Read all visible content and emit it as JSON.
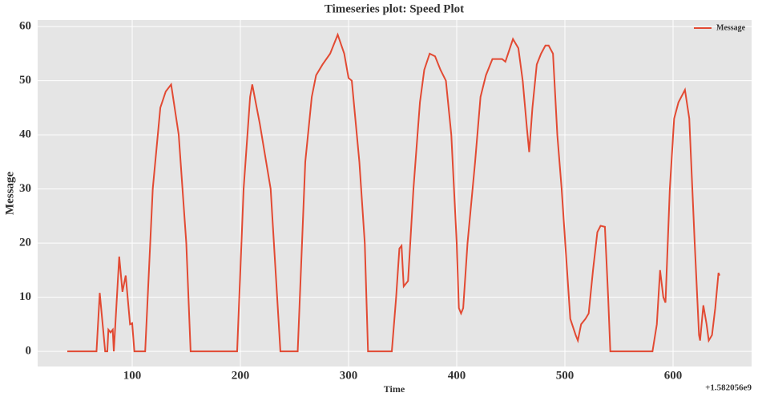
{
  "chart_data": {
    "type": "line",
    "title": "Timeseries plot: Speed Plot",
    "xlabel": "Time",
    "ylabel": "Message",
    "x_offset_label": "+1.582056e9",
    "x": [
      40,
      67,
      70,
      75,
      77,
      78,
      80,
      82,
      83,
      88,
      91,
      94,
      98,
      100,
      102,
      112,
      119,
      126,
      131,
      136,
      143,
      150,
      154,
      197,
      203,
      209,
      211,
      218,
      228,
      234,
      237,
      253,
      260,
      266,
      270,
      276,
      283,
      290,
      296,
      300,
      303,
      310,
      315,
      318,
      340,
      344,
      347,
      349,
      351,
      355,
      360,
      366,
      370,
      375,
      380,
      385,
      390,
      395,
      400,
      402,
      404,
      406,
      410,
      417,
      422,
      427,
      433,
      442,
      445,
      452,
      457,
      461,
      465,
      467,
      470,
      474,
      478,
      482,
      485,
      489,
      493,
      497,
      502,
      505,
      510,
      512,
      515,
      519,
      522,
      526,
      530,
      533,
      537,
      540,
      542,
      581,
      585,
      588,
      591,
      593,
      597,
      601,
      605,
      611,
      615,
      620,
      624,
      625,
      628,
      631,
      633,
      636,
      639,
      642,
      643
    ],
    "series": [
      {
        "name": "Message",
        "color": "#e24a33",
        "values": [
          0,
          0,
          10.8,
          0,
          0,
          4,
          3.5,
          4,
          0,
          17.5,
          11,
          14,
          5,
          5.2,
          0,
          0,
          30,
          45,
          48,
          49.3,
          40,
          20,
          0,
          0,
          30,
          47,
          49.3,
          42,
          30,
          10,
          0,
          0,
          35,
          47,
          51,
          53,
          55,
          58.5,
          55,
          50.5,
          50,
          35,
          20,
          0,
          0,
          10,
          19,
          19.5,
          12,
          13,
          30,
          46,
          52,
          55,
          54.5,
          52,
          50,
          40,
          20,
          8,
          7,
          8,
          20,
          35,
          47,
          51,
          54,
          54,
          53.5,
          57.7,
          56,
          50,
          41,
          36.8,
          45,
          53,
          55,
          56.5,
          56.5,
          55,
          40,
          30,
          15,
          6,
          3,
          2,
          5,
          6,
          7,
          15,
          22,
          23.2,
          23,
          10,
          0,
          0,
          5,
          15,
          10,
          9,
          30,
          43,
          46,
          48.3,
          43,
          20,
          3,
          2,
          8.5,
          5,
          2,
          3,
          8,
          14.5,
          14
        ]
      }
    ],
    "xlim": [
      12.6,
      672.6
    ],
    "ylim": [
      -2.8,
      61.2
    ],
    "xticks": [
      100,
      200,
      300,
      400,
      500,
      600
    ],
    "yticks": [
      0,
      10,
      20,
      30,
      40,
      50,
      60
    ],
    "grid": true,
    "legend": "upper right"
  }
}
